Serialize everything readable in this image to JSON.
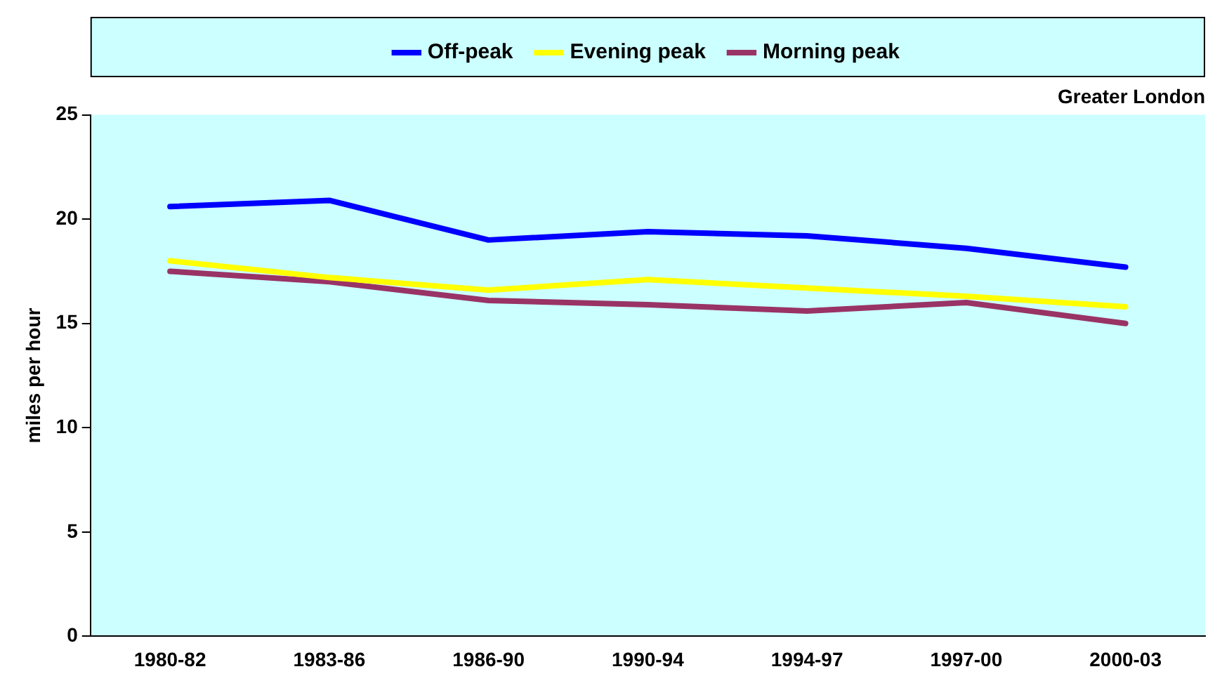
{
  "chart_data": {
    "type": "line",
    "subtitle": "Greater London",
    "ylabel": "miles per hour",
    "categories": [
      "1980-82",
      "1983-86",
      "1986-90",
      "1990-94",
      "1994-97",
      "1997-00",
      "2000-03"
    ],
    "series": [
      {
        "name": "Off-peak",
        "color": "#0000ff",
        "values": [
          20.6,
          20.9,
          19.0,
          19.4,
          19.2,
          18.6,
          17.7
        ]
      },
      {
        "name": "Evening peak",
        "color": "#ffff00",
        "values": [
          18.0,
          17.2,
          16.6,
          17.1,
          16.7,
          16.3,
          15.8
        ]
      },
      {
        "name": "Morning peak",
        "color": "#993366",
        "values": [
          17.5,
          17.0,
          16.1,
          15.9,
          15.6,
          16.0,
          15.0
        ]
      }
    ],
    "ylim": [
      0,
      25
    ],
    "yticks": [
      0,
      5,
      10,
      15,
      20,
      25
    ],
    "grid": false,
    "legend": "top",
    "marker": "none",
    "line_style": "solid"
  }
}
